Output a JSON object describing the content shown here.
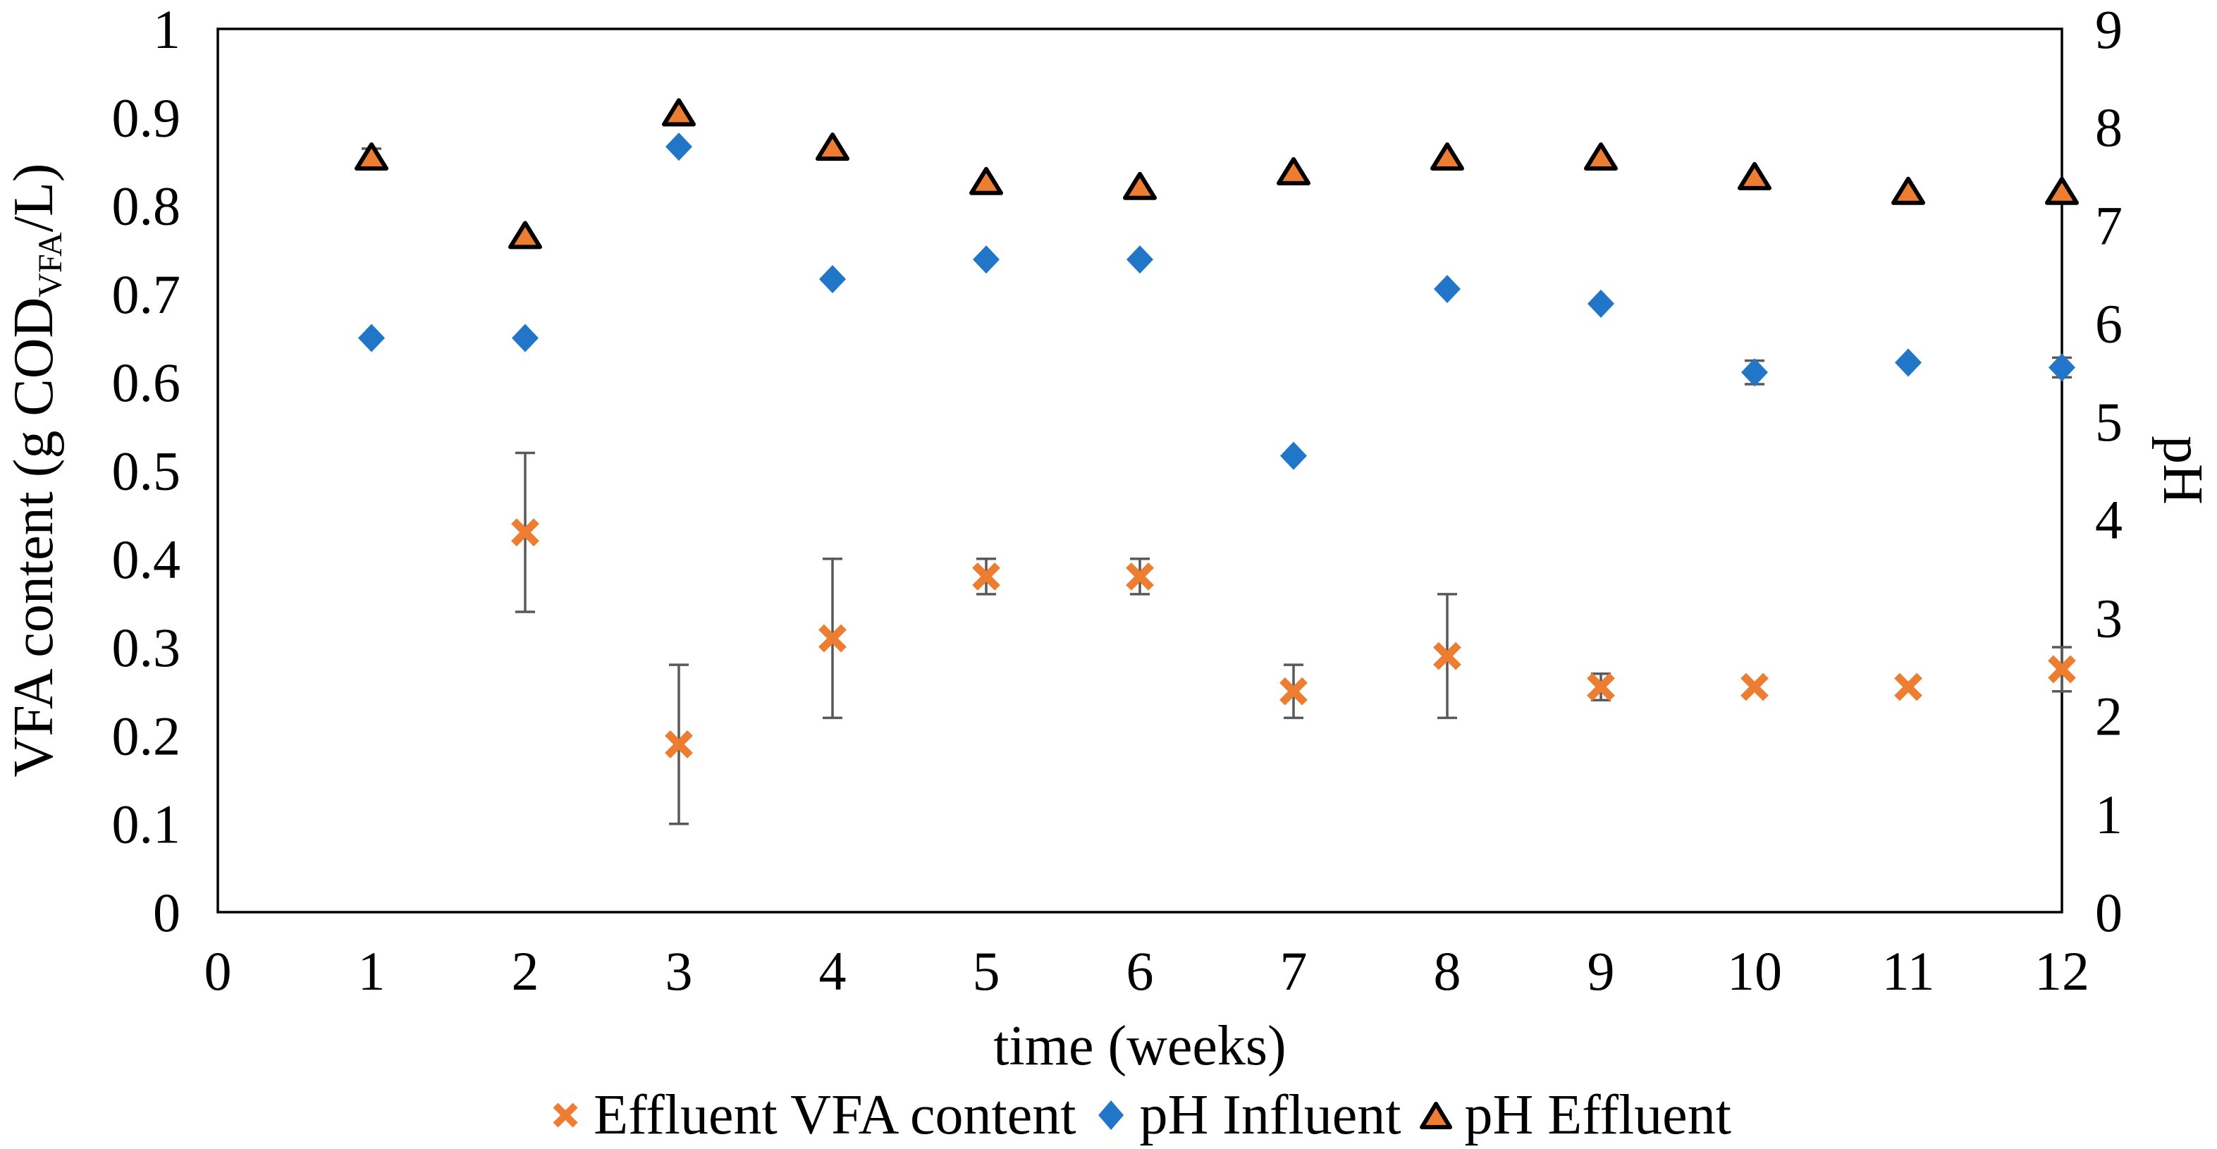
{
  "figure": {
    "background_color": "#FFFFFF",
    "text_color": "#000000",
    "border_color": "#000000",
    "error_bar_color": "#595959"
  },
  "chart_data": {
    "type": "scatter",
    "title": "",
    "grid": false,
    "legend_position": "bottom",
    "x_axis": {
      "label": "time (weeks)",
      "min": 0,
      "max": 12,
      "ticks": [
        0,
        1,
        2,
        3,
        4,
        5,
        6,
        7,
        8,
        9,
        10,
        11,
        12
      ]
    },
    "y_axis_left": {
      "label_pre": "VFA content (g COD",
      "label_sub": "VFA",
      "label_post": "/L)",
      "min": 0,
      "max": 1,
      "ticks": [
        "0",
        "0.1",
        "0.2",
        "0.3",
        "0.4",
        "0.5",
        "0.6",
        "0.7",
        "0.8",
        "0.9",
        "1"
      ]
    },
    "y_axis_right": {
      "label": "pH",
      "min": 0,
      "max": 9,
      "ticks": [
        0,
        1,
        2,
        3,
        4,
        5,
        6,
        7,
        8,
        9
      ]
    },
    "series": [
      {
        "name": "Effluent VFA content",
        "axis": "left",
        "marker": "x",
        "color": "#ED7D31",
        "points": [
          {
            "x": 2,
            "y": 0.43,
            "err": 0.09
          },
          {
            "x": 3,
            "y": 0.19,
            "err": 0.09
          },
          {
            "x": 4,
            "y": 0.31,
            "err": 0.09
          },
          {
            "x": 5,
            "y": 0.38,
            "err": 0.02
          },
          {
            "x": 6,
            "y": 0.38,
            "err": 0.02
          },
          {
            "x": 7,
            "y": 0.25,
            "err": 0.03
          },
          {
            "x": 8,
            "y": 0.29,
            "err": 0.07
          },
          {
            "x": 9,
            "y": 0.255,
            "err": 0.015
          },
          {
            "x": 10,
            "y": 0.255,
            "err": 0
          },
          {
            "x": 11,
            "y": 0.255,
            "err": 0
          },
          {
            "x": 12,
            "y": 0.275,
            "err": 0.025
          }
        ]
      },
      {
        "name": "pH Influent",
        "axis": "right",
        "marker": "diamond",
        "color": "#2176C7",
        "points": [
          {
            "x": 1,
            "y": 5.85,
            "err": 0
          },
          {
            "x": 2,
            "y": 5.85,
            "err": 0
          },
          {
            "x": 3,
            "y": 7.8,
            "err": 0
          },
          {
            "x": 4,
            "y": 6.45,
            "err": 0
          },
          {
            "x": 5,
            "y": 6.65,
            "err": 0
          },
          {
            "x": 6,
            "y": 6.65,
            "err": 0
          },
          {
            "x": 7,
            "y": 4.65,
            "err": 0
          },
          {
            "x": 8,
            "y": 6.35,
            "err": 0
          },
          {
            "x": 9,
            "y": 6.2,
            "err": 0
          },
          {
            "x": 10,
            "y": 5.5,
            "err": 0.12
          },
          {
            "x": 11,
            "y": 5.6,
            "err": 0
          },
          {
            "x": 12,
            "y": 5.55,
            "err": 0.1
          }
        ]
      },
      {
        "name": "pH Effluent",
        "axis": "right",
        "marker": "triangle",
        "color": "#ED7D31",
        "marker_outline": "#000000",
        "points": [
          {
            "x": 1,
            "y": 7.7,
            "err": 0.08
          },
          {
            "x": 2,
            "y": 6.9,
            "err": 0
          },
          {
            "x": 3,
            "y": 8.15,
            "err": 0
          },
          {
            "x": 4,
            "y": 7.8,
            "err": 0
          },
          {
            "x": 5,
            "y": 7.45,
            "err": 0
          },
          {
            "x": 6,
            "y": 7.4,
            "err": 0
          },
          {
            "x": 7,
            "y": 7.55,
            "err": 0
          },
          {
            "x": 8,
            "y": 7.7,
            "err": 0
          },
          {
            "x": 9,
            "y": 7.7,
            "err": 0
          },
          {
            "x": 10,
            "y": 7.5,
            "err": 0
          },
          {
            "x": 11,
            "y": 7.35,
            "err": 0
          },
          {
            "x": 12,
            "y": 7.35,
            "err": 0
          }
        ]
      }
    ]
  }
}
